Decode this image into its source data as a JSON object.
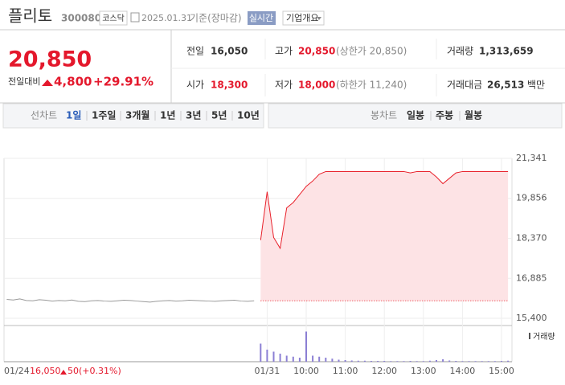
{
  "header": {
    "name": "플리토",
    "code": "300080",
    "market": "코스닥",
    "date": "2025.01.31",
    "basis": "기준(장마감)",
    "realtime": "실시간",
    "company": "기업개요"
  },
  "quote": {
    "price": "20,850",
    "change_label": "전일대비",
    "change": "4,800",
    "rate": "+29.91%",
    "stats": [
      {
        "label": "전일",
        "value": "16,050"
      },
      {
        "label": "고가",
        "value": "20,850",
        "note": "(상한가 20,850)"
      },
      {
        "label": "거래량",
        "value": "1,313,659"
      },
      {
        "label": "시가",
        "value": "18,300"
      },
      {
        "label": "저가",
        "value": "18,000",
        "note": "(하한가 11,240)"
      },
      {
        "label": "거래대금",
        "value": "26,513",
        "unit": "백만"
      }
    ]
  },
  "tabs": {
    "line_label": "선차트",
    "line": [
      "1일",
      "1주일",
      "3개월",
      "1년",
      "3년",
      "5년",
      "10년"
    ],
    "candle_label": "봉차트",
    "candle": [
      "일봉",
      "주봉",
      "월봉"
    ]
  },
  "chart_data": {
    "type": "line",
    "categories": [
      "01/24",
      null,
      null,
      null,
      null,
      null,
      null,
      null,
      null,
      null,
      null,
      null,
      null,
      null,
      null,
      null,
      null,
      null,
      null,
      null,
      null,
      null,
      null,
      null,
      null,
      null,
      null,
      null,
      null,
      null,
      null,
      null,
      null,
      null,
      null,
      null,
      null,
      null,
      null,
      null,
      "01/31",
      null,
      null,
      null,
      null,
      null,
      "10:00",
      null,
      null,
      null,
      null,
      null,
      "11:00",
      null,
      null,
      null,
      null,
      null,
      "12:00",
      null,
      null,
      null,
      null,
      null,
      "13:00",
      null,
      null,
      null,
      null,
      null,
      "14:00",
      null,
      null,
      null,
      null,
      null,
      "15:00",
      null
    ],
    "series": [
      {
        "color": "#9a9a9a",
        "values": [
          16100,
          16080,
          16120,
          16060,
          16050,
          16090,
          16070,
          16040,
          16060,
          16050,
          16080,
          16030,
          16020,
          16050,
          16060,
          16040,
          16030,
          16050,
          16070,
          16060,
          16040,
          16020,
          16000,
          16030,
          16050,
          16060,
          16040,
          16050,
          16070,
          16060,
          16050,
          16040,
          16030,
          16050,
          16060,
          16070,
          16040,
          16030,
          16050,
          null,
          null,
          null,
          null,
          null,
          null,
          null,
          null,
          null,
          null,
          null,
          null,
          null,
          null,
          null,
          null,
          null,
          null,
          null,
          null,
          null,
          null,
          null,
          null,
          null,
          null,
          null,
          null,
          null,
          null,
          null,
          null,
          null,
          null,
          null,
          null,
          null,
          null,
          null
        ]
      },
      {
        "color": "#e8202a",
        "fill": "#fde3e5",
        "values": [
          null,
          null,
          null,
          null,
          null,
          null,
          null,
          null,
          null,
          null,
          null,
          null,
          null,
          null,
          null,
          null,
          null,
          null,
          null,
          null,
          null,
          null,
          null,
          null,
          null,
          null,
          null,
          null,
          null,
          null,
          null,
          null,
          null,
          null,
          null,
          null,
          null,
          null,
          null,
          18300,
          20100,
          18400,
          18000,
          19500,
          19700,
          20000,
          20300,
          20500,
          20750,
          20850,
          20850,
          20850,
          20850,
          20850,
          20850,
          20850,
          20850,
          20850,
          20850,
          20850,
          20850,
          20850,
          20800,
          20850,
          20850,
          20850,
          20650,
          20400,
          20600,
          20800,
          20850,
          20850,
          20850,
          20850,
          20850,
          20850,
          20850,
          20850
        ]
      }
    ],
    "baseline": 16050,
    "ylim": [
      15400,
      21341
    ],
    "yticks": [
      {
        "value": 15400,
        "label": "15,400"
      },
      {
        "value": 16885,
        "label": "16,885"
      },
      {
        "value": 18370,
        "label": "18,370"
      },
      {
        "value": 19856,
        "label": "19,856"
      },
      {
        "value": 21341,
        "label": "21,341"
      }
    ],
    "grid": true,
    "volume": {
      "name": "거래량",
      "color": "#8b7fd4",
      "ylim": [
        0,
        160000
      ],
      "values": [
        null,
        null,
        null,
        null,
        null,
        null,
        null,
        null,
        null,
        null,
        null,
        null,
        null,
        null,
        null,
        null,
        null,
        null,
        null,
        null,
        null,
        null,
        null,
        null,
        null,
        null,
        null,
        null,
        null,
        null,
        null,
        null,
        null,
        null,
        null,
        null,
        null,
        null,
        null,
        90000,
        60000,
        50000,
        40000,
        30000,
        25000,
        20000,
        150000,
        30000,
        25000,
        20000,
        15000,
        10000,
        8000,
        6000,
        5000,
        5000,
        4000,
        4000,
        4000,
        3000,
        3000,
        3000,
        4000,
        3000,
        3000,
        5000,
        8000,
        12000,
        6000,
        4000,
        3000,
        3000,
        3000,
        3000,
        3000,
        3000,
        4000,
        5000
      ]
    },
    "prev_day": {
      "close": "16,050",
      "change": "50",
      "rate": "(+0.31%)"
    }
  }
}
